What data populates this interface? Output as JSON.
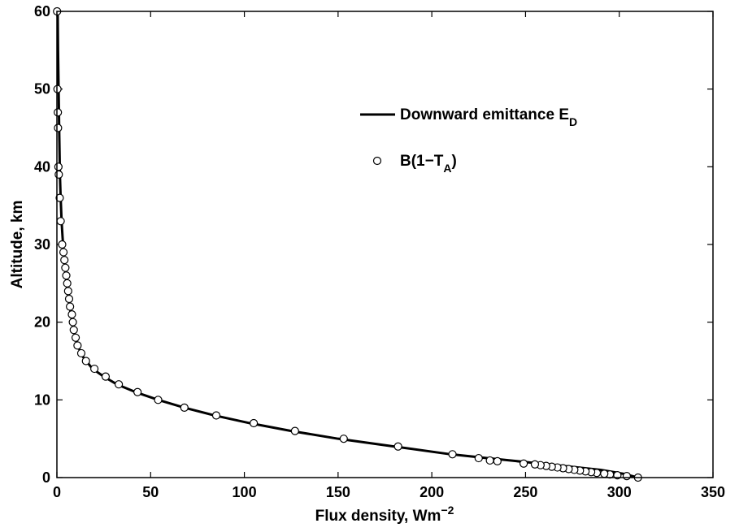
{
  "chart_data": {
    "type": "line",
    "xlabel": "Flux density, Wm",
    "xlabel_sup": "−2",
    "ylabel": "Altitude, km",
    "xlim": [
      0,
      350
    ],
    "ylim": [
      0,
      60
    ],
    "x_ticks": [
      0,
      50,
      100,
      150,
      200,
      250,
      300,
      350
    ],
    "y_ticks": [
      0,
      10,
      20,
      30,
      40,
      50,
      60
    ],
    "grid": false,
    "legend_position": "top-right",
    "series": [
      {
        "name": "Downward emittance E",
        "name_sub": "D",
        "style": "solid-line",
        "color": "#000000",
        "x": [
          310,
          302,
          290,
          270,
          250,
          230,
          210,
          180,
          150,
          125,
          103,
          84,
          68,
          54,
          42,
          32,
          25,
          19,
          14,
          11,
          9,
          7.5,
          6.2,
          5.2,
          4.3,
          3.6,
          3.0,
          2.5,
          2.0,
          1.6,
          1.2,
          0.9,
          0.6,
          0.4
        ],
        "y": [
          0,
          0.5,
          1.0,
          1.5,
          2.0,
          2.5,
          3.0,
          4.0,
          5.0,
          6.0,
          7.0,
          8.0,
          9.0,
          10.0,
          11.0,
          12.0,
          13.0,
          14.0,
          15.5,
          17.0,
          19.0,
          21.0,
          23.0,
          25.0,
          27.0,
          29.0,
          31.0,
          33.0,
          36.0,
          39.0,
          45.0,
          50.0,
          55.0,
          60.0
        ]
      },
      {
        "name": "B(1−T",
        "name_sub": "A",
        "name_suffix": ")",
        "style": "open-circle",
        "color": "#000000",
        "x": [
          310,
          304,
          299,
          295,
          292,
          288,
          285,
          282,
          279,
          276,
          273,
          270,
          267,
          264,
          261,
          258,
          255,
          249,
          235,
          231,
          225,
          211,
          182,
          153,
          127,
          105,
          85,
          68,
          54,
          43,
          33,
          26,
          20,
          15.5,
          13,
          11,
          10,
          9,
          8.5,
          8,
          7,
          6.5,
          6,
          5.5,
          5,
          4.5,
          4,
          3.5,
          2.8,
          2,
          1.5,
          1,
          0.6,
          0.8,
          0.5,
          0.3,
          0.1
        ],
        "y": [
          0,
          0.2,
          0.3,
          0.4,
          0.5,
          0.6,
          0.7,
          0.8,
          0.9,
          1.0,
          1.1,
          1.2,
          1.3,
          1.4,
          1.5,
          1.6,
          1.7,
          1.8,
          2.1,
          2.2,
          2.5,
          3.0,
          4.0,
          5.0,
          6.0,
          7.0,
          8.0,
          9.0,
          10.0,
          11.0,
          12.0,
          13.0,
          14.0,
          15.0,
          16.0,
          17.0,
          18.0,
          19.0,
          20.0,
          21.0,
          22.0,
          23.0,
          24.0,
          25.0,
          26.0,
          27.0,
          28.0,
          29.0,
          30.0,
          33.0,
          36.0,
          39.0,
          45.0,
          40.0,
          47.0,
          50.0,
          60.0
        ]
      }
    ]
  }
}
